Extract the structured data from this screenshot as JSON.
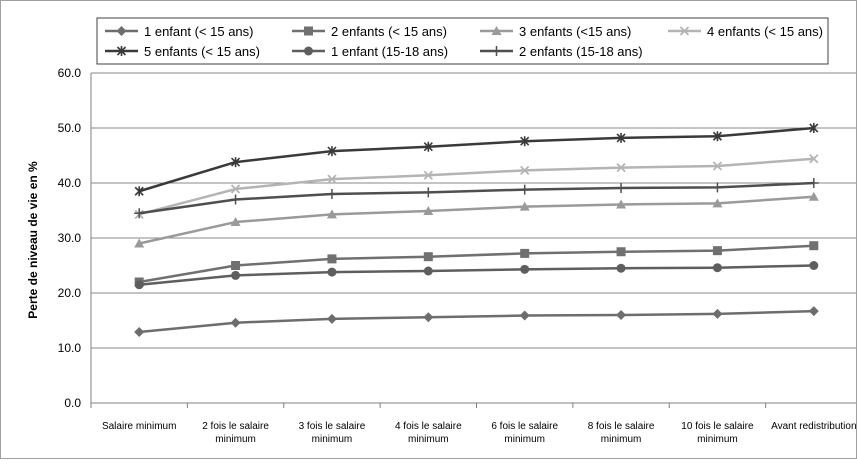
{
  "chart_data": {
    "type": "line",
    "title": "",
    "xlabel": "",
    "ylabel": "Perte de niveau de vie en %",
    "ylim": [
      0,
      60
    ],
    "yticks": [
      "0.0",
      "10.0",
      "20.0",
      "30.0",
      "40.0",
      "50.0",
      "60.0"
    ],
    "grid": true,
    "legend": "top",
    "categories": [
      [
        "Salaire minimum"
      ],
      [
        "2 fois le salaire",
        "minimum"
      ],
      [
        "3 fois le salaire",
        "minimum"
      ],
      [
        "4 fois le salaire",
        "minimum"
      ],
      [
        "6 fois le salaire",
        "minimum"
      ],
      [
        "8 fois le salaire",
        "minimum"
      ],
      [
        "10 fois le salaire",
        "minimum"
      ],
      [
        "Avant redistribution"
      ]
    ],
    "series": [
      {
        "name": "1 enfant (< 15 ans)",
        "marker": "diamond",
        "color": "#6d6d6d",
        "values": [
          12.9,
          14.6,
          15.3,
          15.6,
          15.9,
          16.0,
          16.2,
          16.7
        ]
      },
      {
        "name": "2 enfants (< 15 ans)",
        "marker": "square",
        "color": "#707070",
        "values": [
          22.0,
          25.0,
          26.2,
          26.6,
          27.2,
          27.5,
          27.7,
          28.6
        ]
      },
      {
        "name": "3 enfants (<15 ans)",
        "marker": "triangle",
        "color": "#9a9a9a",
        "values": [
          29.0,
          32.9,
          34.3,
          34.9,
          35.7,
          36.1,
          36.3,
          37.5
        ]
      },
      {
        "name": "4 enfants (< 15 ans)",
        "marker": "x",
        "color": "#b4b4b4",
        "values": [
          34.3,
          38.9,
          40.7,
          41.4,
          42.3,
          42.8,
          43.1,
          44.4
        ]
      },
      {
        "name": "5 enfants (< 15 ans)",
        "marker": "star",
        "color": "#3a3a3a",
        "values": [
          38.5,
          43.8,
          45.8,
          46.6,
          47.6,
          48.2,
          48.5,
          50.0
        ]
      },
      {
        "name": "1 enfant (15-18 ans)",
        "marker": "circle",
        "color": "#5e5e5e",
        "values": [
          21.5,
          23.2,
          23.8,
          24.0,
          24.3,
          24.5,
          24.6,
          25.0
        ]
      },
      {
        "name": "2 enfants (15-18 ans)",
        "marker": "plus",
        "color": "#4f4f4f",
        "values": [
          34.5,
          37.0,
          38.0,
          38.3,
          38.8,
          39.1,
          39.2,
          40.0
        ]
      }
    ]
  }
}
